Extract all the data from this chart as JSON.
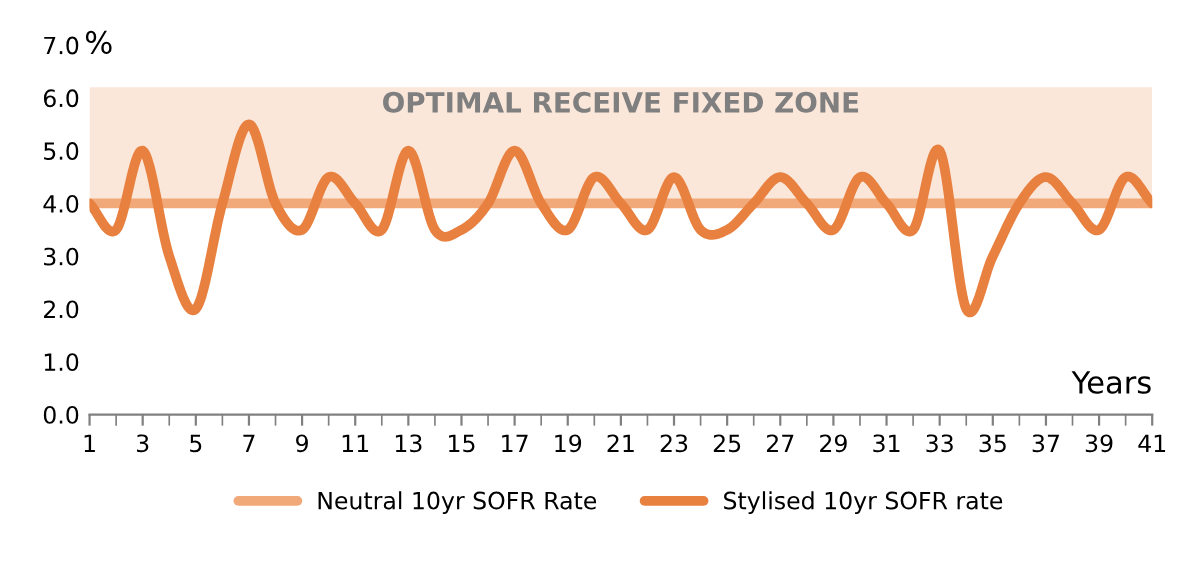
{
  "chart_data": {
    "type": "line",
    "xlabel": "Years",
    "ylabel": "%",
    "x": [
      1,
      2,
      3,
      4,
      5,
      6,
      7,
      8,
      9,
      10,
      11,
      12,
      13,
      14,
      15,
      16,
      17,
      18,
      19,
      20,
      21,
      22,
      23,
      24,
      25,
      26,
      27,
      28,
      29,
      30,
      31,
      32,
      33,
      34,
      35,
      36,
      37,
      38,
      39,
      40,
      41
    ],
    "series": [
      {
        "name": "Neutral 10yr SOFR Rate",
        "color": "#f2a97a",
        "values": [
          4.0,
          4.0,
          4.0,
          4.0,
          4.0,
          4.0,
          4.0,
          4.0,
          4.0,
          4.0,
          4.0,
          4.0,
          4.0,
          4.0,
          4.0,
          4.0,
          4.0,
          4.0,
          4.0,
          4.0,
          4.0,
          4.0,
          4.0,
          4.0,
          4.0,
          4.0,
          4.0,
          4.0,
          4.0,
          4.0,
          4.0,
          4.0,
          4.0,
          4.0,
          4.0,
          4.0,
          4.0,
          4.0,
          4.0,
          4.0,
          4.0
        ]
      },
      {
        "name": "Stylised 10yr SOFR rate",
        "color": "#e8803f",
        "values": [
          4.0,
          3.5,
          5.0,
          3.0,
          2.0,
          4.0,
          5.5,
          4.0,
          3.5,
          4.5,
          4.0,
          3.5,
          5.0,
          3.5,
          3.5,
          4.0,
          5.0,
          4.0,
          3.5,
          4.5,
          4.0,
          3.5,
          4.5,
          3.5,
          3.5,
          4.0,
          4.5,
          4.0,
          3.5,
          4.5,
          4.0,
          3.5,
          5.0,
          2.0,
          3.0,
          4.0,
          4.5,
          4.0,
          3.5,
          4.5,
          4.0
        ]
      }
    ],
    "xlim": [
      1,
      41
    ],
    "xticks": [
      1,
      3,
      5,
      7,
      9,
      11,
      13,
      15,
      17,
      19,
      21,
      23,
      25,
      27,
      29,
      31,
      33,
      35,
      37,
      39,
      41
    ],
    "ylim": [
      0,
      7
    ],
    "yticks": [
      {
        "value": 0,
        "label": "0.0"
      },
      {
        "value": 1,
        "label": "1.0"
      },
      {
        "value": 2,
        "label": "2.0"
      },
      {
        "value": 3,
        "label": "3.0"
      },
      {
        "value": 4,
        "label": "4.0"
      },
      {
        "value": 5,
        "label": "5.0"
      },
      {
        "value": 6,
        "label": "6.0"
      },
      {
        "value": 7,
        "label": "7.0"
      }
    ],
    "bands": [
      {
        "axis": "y",
        "from": 4.0,
        "to": 6.2,
        "label": "OPTIMAL RECEIVE FIXED ZONE",
        "color": "#fbe6da"
      }
    ],
    "grid": false,
    "legend": "bottom",
    "marker": "none",
    "line_style": "solid"
  }
}
